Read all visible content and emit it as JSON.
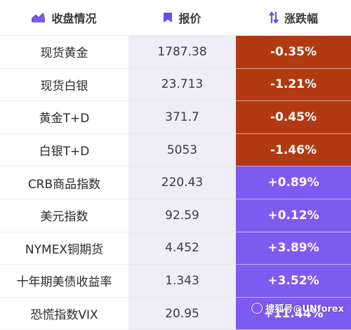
{
  "header": {
    "col1": "收盘情况",
    "col2": "报价",
    "col3": "涨跌幅",
    "icons": [
      "chart-trend-icon",
      "bookmark-icon",
      "sort-arrows-icon"
    ]
  },
  "colors": {
    "negative": "#b13a12",
    "positive": "#7f5af0",
    "price_bg": "#efeef6",
    "accent": "#6b4de6"
  },
  "rows": [
    {
      "name": "现货黄金",
      "price": "1787.38",
      "change": "-0.35%",
      "dir": "neg"
    },
    {
      "name": "现货白银",
      "price": "23.713",
      "change": "-1.21%",
      "dir": "neg"
    },
    {
      "name": "黄金T+D",
      "price": "371.7",
      "change": "-0.45%",
      "dir": "neg"
    },
    {
      "name": "白银T+D",
      "price": "5053",
      "change": "-1.46%",
      "dir": "neg"
    },
    {
      "name": "CRB商品指数",
      "price": "220.43",
      "change": "+0.89%",
      "dir": "pos"
    },
    {
      "name": "美元指数",
      "price": "92.59",
      "change": "+0.12%",
      "dir": "pos"
    },
    {
      "name": "NYMEX铜期货",
      "price": "4.452",
      "change": "+3.89%",
      "dir": "pos"
    },
    {
      "name": "十年期美债收益率",
      "price": "1.343",
      "change": "+3.52%",
      "dir": "pos"
    },
    {
      "name": "恐慌指数VIX",
      "price": "20.95",
      "change": "+11.44%",
      "dir": "pos"
    }
  ],
  "watermark": "搜狐号@UNforex"
}
